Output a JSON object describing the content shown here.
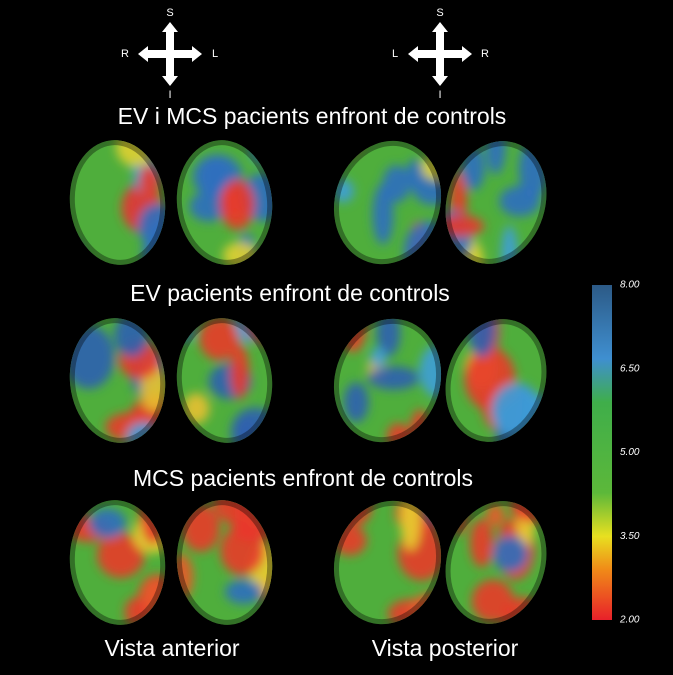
{
  "orientation_left": {
    "top": "S",
    "bottom": "I",
    "left": "R",
    "right": "L"
  },
  "orientation_right": {
    "top": "S",
    "bottom": "I",
    "left": "L",
    "right": "R"
  },
  "rows": [
    {
      "title": "EV i MCS pacients enfront de controls"
    },
    {
      "title": "EV pacients enfront de controls"
    },
    {
      "title": "MCS pacients enfront de controls"
    }
  ],
  "views": [
    "Vista anterior",
    "Vista posterior"
  ],
  "colorbar": {
    "ticks": [
      "8.00",
      "6.50",
      "5.00",
      "3.50",
      "2.00"
    ]
  }
}
